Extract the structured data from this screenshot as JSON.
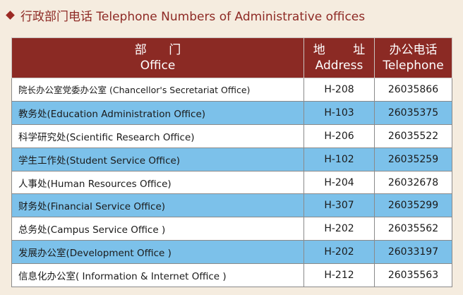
{
  "heading": {
    "text": "行政部门电话 Telephone Numbers of Administrative offices"
  },
  "table": {
    "headers": [
      {
        "cn": "部 门",
        "en": "Office"
      },
      {
        "cn": "地 址",
        "en": "Address"
      },
      {
        "cn": "办公电话",
        "en": "Telephone"
      }
    ],
    "rows": [
      {
        "office": "院长办公室党委办公室 (Chancellor's Secretariat Office)",
        "address": "H-208",
        "telephone": "26035866"
      },
      {
        "office": "教务处(Education Administration Office)",
        "address": "H-103",
        "telephone": "26035375"
      },
      {
        "office": "科学研究处(Scientific Research Office)",
        "address": "H-206",
        "telephone": "26035522"
      },
      {
        "office": "学生工作处(Student Service Office)",
        "address": "H-102",
        "telephone": "26035259"
      },
      {
        "office": "人事处(Human Resources Office)",
        "address": "H-204",
        "telephone": "26032678"
      },
      {
        "office": "财务处(Financial Service Office)",
        "address": "H-307",
        "telephone": "26035299"
      },
      {
        "office": "总务处(Campus Service Office )",
        "address": "H-202",
        "telephone": "26035562"
      },
      {
        "office": "发展办公室(Development Office )",
        "address": "H-202",
        "telephone": "26033197"
      },
      {
        "office": "信息化办公室( Information & Internet Office )",
        "address": "H-212",
        "telephone": "26035563"
      }
    ]
  },
  "colors": {
    "header_bg": "#8b2a24",
    "heading_text": "#8e2a25",
    "stripe": "#7cc1ea",
    "page_bg": "#f5ecdf"
  }
}
